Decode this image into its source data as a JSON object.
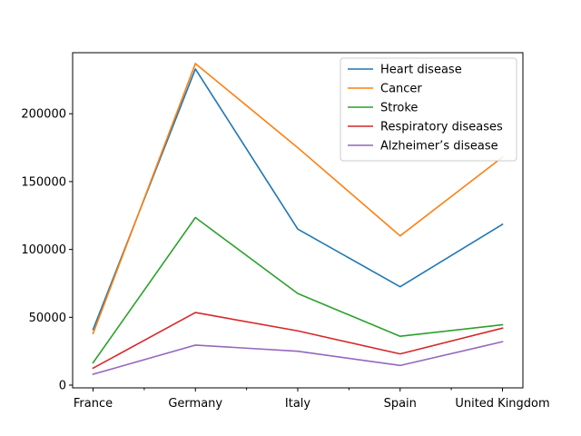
{
  "chart_data": {
    "type": "line",
    "title": "",
    "xlabel": "",
    "ylabel": "",
    "categories": [
      "France",
      "Germany",
      "Italy",
      "Spain",
      "United Kingdom"
    ],
    "ylim": [
      -2000,
      245000
    ],
    "yticks": [
      0,
      50000,
      100000,
      150000,
      200000
    ],
    "grid": false,
    "legend_position": "top-right",
    "series": [
      {
        "name": "Heart disease",
        "color": "#1f77b4",
        "values": [
          41000,
          233000,
          115000,
          72500,
          118500
        ]
      },
      {
        "name": "Cancer",
        "color": "#ff7f0e",
        "values": [
          38000,
          237000,
          175000,
          110000,
          168000
        ]
      },
      {
        "name": "Stroke",
        "color": "#2ca02c",
        "values": [
          16500,
          123500,
          67500,
          36000,
          44500
        ]
      },
      {
        "name": "Respiratory diseases",
        "color": "#d62728",
        "values": [
          12500,
          53500,
          40000,
          23000,
          42000
        ]
      },
      {
        "name": "Alzheimer’s disease",
        "color": "#9467bd",
        "values": [
          8000,
          29500,
          25000,
          14500,
          32000
        ]
      }
    ]
  }
}
